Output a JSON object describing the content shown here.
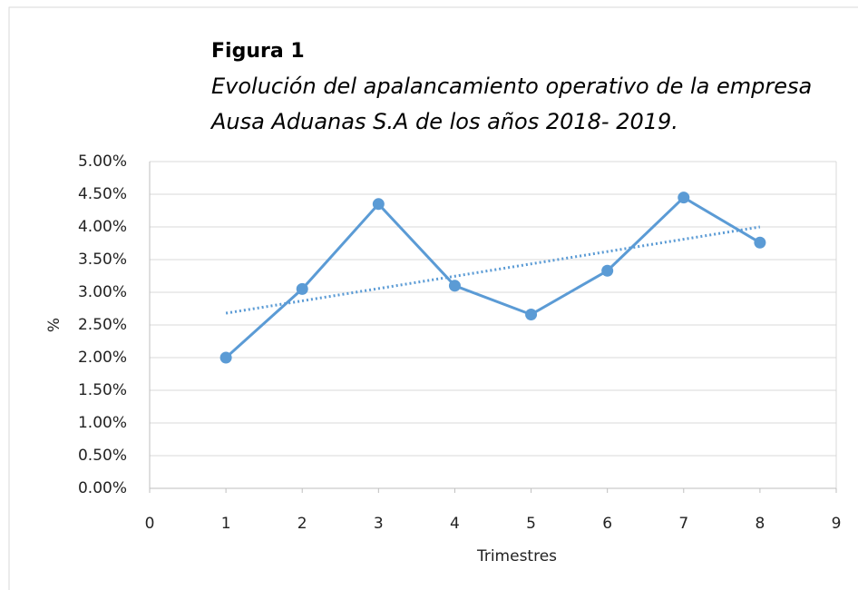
{
  "chart_data": {
    "type": "line",
    "title": "Figura  1",
    "subtitle": [
      "Evolución del apalancamiento operativo de la empresa",
      "Ausa Aduanas S.A de los años 2018- 2019."
    ],
    "xlabel": "Trimestres",
    "ylabel": "%",
    "x": [
      1,
      2,
      3,
      4,
      5,
      6,
      7,
      8
    ],
    "series": [
      {
        "color": "#5b9bd5",
        "values": [
          2.0,
          3.05,
          4.35,
          3.1,
          2.66,
          3.33,
          4.45,
          3.76
        ]
      }
    ],
    "trendline": {
      "x": [
        1,
        8
      ],
      "values": [
        2.68,
        4.0
      ],
      "color": "#5b9bd5"
    },
    "xlim": [
      0,
      9
    ],
    "xticks": [
      0,
      1,
      2,
      3,
      4,
      5,
      6,
      7,
      8,
      9
    ],
    "ylim": [
      0,
      5
    ],
    "yticks": [
      {
        "value": 0,
        "label": "0.00%"
      },
      {
        "value": 0.5,
        "label": "0.50%"
      },
      {
        "value": 1,
        "label": "1.00%"
      },
      {
        "value": 1.5,
        "label": "1.50%"
      },
      {
        "value": 2,
        "label": "2.00%"
      },
      {
        "value": 2.5,
        "label": "2.50%"
      },
      {
        "value": 3,
        "label": "3.00%"
      },
      {
        "value": 3.5,
        "label": "3.50%"
      },
      {
        "value": 4,
        "label": "4.00%"
      },
      {
        "value": 4.5,
        "label": "4.50%"
      },
      {
        "value": 5,
        "label": "5.00%"
      }
    ],
    "grid": true
  }
}
